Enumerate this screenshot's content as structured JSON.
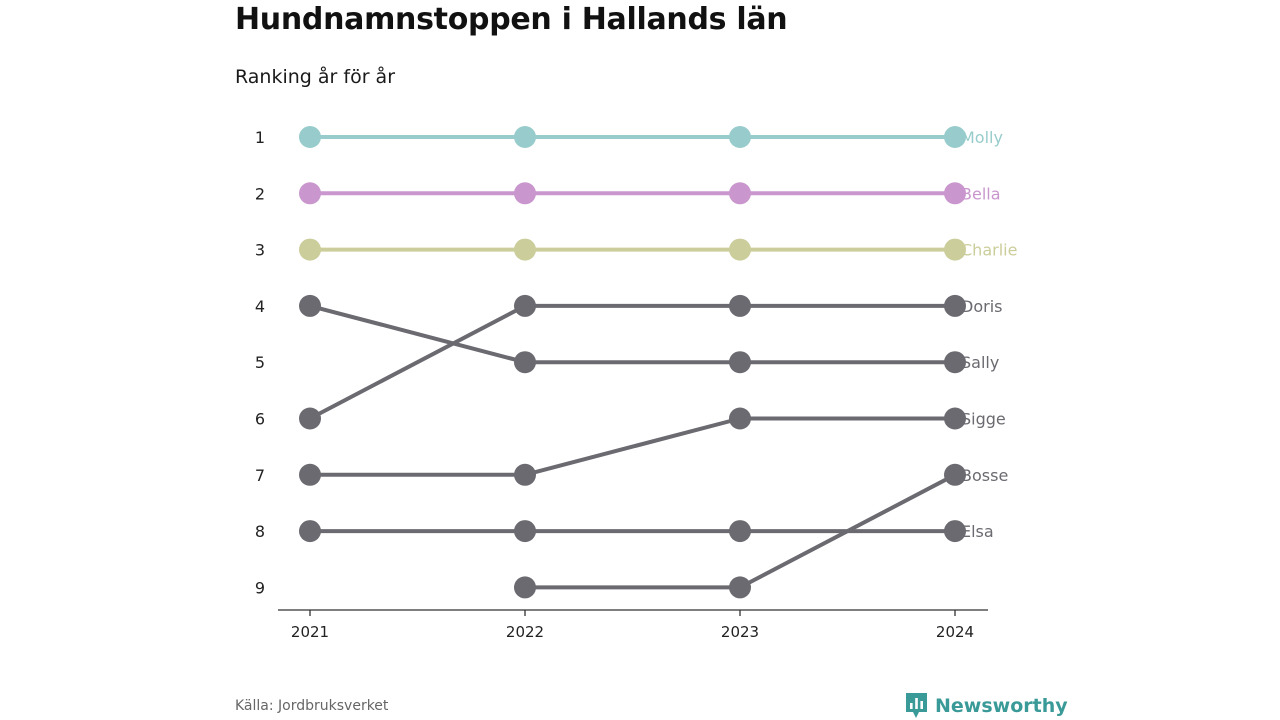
{
  "header": {
    "title": "Hundnamnstoppen i Hallands län",
    "subtitle": "Ranking år för år"
  },
  "footer": {
    "source": "Källa: Jordbruksverket",
    "brand": "Newsworthy"
  },
  "colors": {
    "Molly": "#98cccc",
    "Bella": "#c996ce",
    "Charlie": "#cbcd9a",
    "default": "#6a6a70",
    "axis": "#333333",
    "brand": "#3a9a98"
  },
  "chart_data": {
    "type": "line",
    "chart_style": "bump",
    "x": [
      "2021",
      "2022",
      "2023",
      "2024"
    ],
    "y_ticks": [
      "1",
      "2",
      "3",
      "4",
      "5",
      "6",
      "7",
      "8",
      "9"
    ],
    "ylim": [
      1,
      9
    ],
    "y_inverted": true,
    "grid": false,
    "labels_at": "line-end",
    "series": [
      {
        "name": "Molly",
        "values": [
          1,
          1,
          1,
          1
        ]
      },
      {
        "name": "Bella",
        "values": [
          2,
          2,
          2,
          2
        ]
      },
      {
        "name": "Charlie",
        "values": [
          3,
          3,
          3,
          3
        ]
      },
      {
        "name": "Doris",
        "values": [
          6,
          4,
          4,
          4
        ]
      },
      {
        "name": "Sally",
        "values": [
          4,
          5,
          5,
          5
        ]
      },
      {
        "name": "Sigge",
        "values": [
          7,
          7,
          6,
          6
        ]
      },
      {
        "name": "Bosse",
        "values": [
          null,
          9,
          9,
          7
        ]
      },
      {
        "name": "Elsa",
        "values": [
          8,
          8,
          8,
          8
        ]
      }
    ]
  }
}
